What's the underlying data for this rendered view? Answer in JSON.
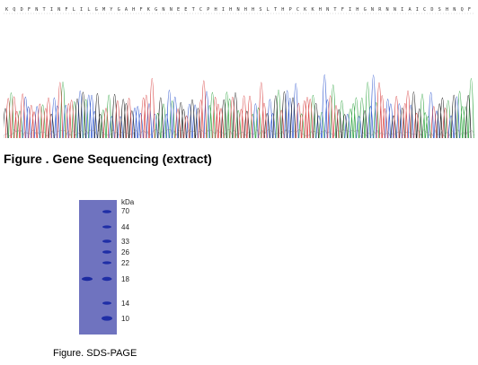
{
  "sequencing": {
    "caption": "Figure . Gene Sequencing (extract)",
    "residue_header": "K Q D F N T I N F L I L G M Y G A H F K G N N E E T C P H I H N H H S L T H P C K K H N T F I H G N R N N I A I C D S H N Q F",
    "trace_colors": {
      "A": "#3aa84a",
      "C": "#3a5fd1",
      "G": "#222222",
      "T": "#d94a4a"
    }
  },
  "sds_page": {
    "caption": "Figure. SDS-PAGE",
    "unit": "kDa",
    "markers": [
      "70",
      "44",
      "33",
      "26",
      "22",
      "18",
      "14",
      "10"
    ]
  }
}
